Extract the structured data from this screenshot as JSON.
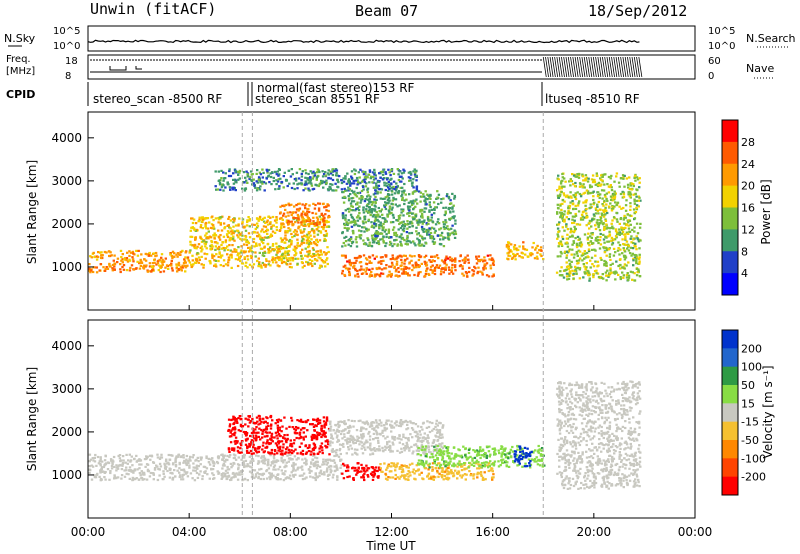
{
  "header": {
    "station": "Unwin (fitACF)",
    "beam": "Beam 07",
    "date": "18/Sep/2012"
  },
  "status": {
    "nsky_label": "N.Sky",
    "nsky_ticks": [
      "10^5",
      "10^0"
    ],
    "nsearch_label": "N.Search",
    "nsearch_ticks": [
      "10^5",
      "10^0"
    ],
    "freq_label": "Freq.",
    "freq_unit": "[MHz]",
    "freq_ticks": [
      "18",
      "8"
    ],
    "nave_label": "Nave",
    "nave_ticks": [
      "60",
      "0"
    ],
    "cpid_label": "CPID",
    "cpid_entries": [
      {
        "time": "00:00",
        "text": "stereo_scan -8500 RF"
      },
      {
        "time": "06:30",
        "text": "stereo_scan 8551 RF"
      },
      {
        "time": "06:20",
        "text": "normal(fast stereo)153 RF"
      },
      {
        "time": "18:00",
        "text": "ltuseq -8510 RF"
      }
    ]
  },
  "power_panel": {
    "ylabel": "Slant Range [km]",
    "cbar_label": "Power [dB]",
    "cbar_ticks": [
      "28",
      "24",
      "20",
      "16",
      "12",
      "8",
      "4"
    ],
    "cbar_colors": [
      "#ff0000",
      "#ff5a00",
      "#ff9a00",
      "#f2d200",
      "#7dbf3a",
      "#3f9a6a",
      "#2040c8",
      "#0000ff"
    ]
  },
  "velocity_panel": {
    "ylabel": "Slant Range [km]",
    "cbar_label": "Velocity [m s⁻¹]",
    "cbar_ticks": [
      "200",
      "100",
      "50",
      "15",
      "-15",
      "-50",
      "-100",
      "-200"
    ],
    "cbar_colors": [
      "#0033cc",
      "#2266cc",
      "#2e9a44",
      "#88dd44",
      "#c8c8c0",
      "#f5c030",
      "#ff8800",
      "#ff4400",
      "#ff0000"
    ]
  },
  "xaxis": {
    "label": "Time UT",
    "ticks": [
      "00:00",
      "04:00",
      "08:00",
      "12:00",
      "16:00",
      "20:00",
      "00:00"
    ]
  },
  "chart_data": [
    {
      "type": "heatmap",
      "panel": "power",
      "xlabel": "Time UT",
      "ylabel": "Slant Range [km]",
      "xlim_hours": [
        0,
        24
      ],
      "ylim": [
        0,
        4600
      ],
      "color_range_db": [
        0,
        30
      ],
      "scatter_bands": [
        {
          "t_start": 0.0,
          "t_end": 4.0,
          "range_low": 900,
          "range_high": 1400,
          "value_db": 22
        },
        {
          "t_start": 4.0,
          "t_end": 9.5,
          "range_low": 1000,
          "range_high": 2200,
          "value_db": 18
        },
        {
          "t_start": 7.5,
          "t_end": 9.5,
          "range_low": 2000,
          "range_high": 2500,
          "value_db": 24
        },
        {
          "t_start": 10.0,
          "t_end": 16.0,
          "range_low": 800,
          "range_high": 1300,
          "value_db": 24
        },
        {
          "t_start": 10.0,
          "t_end": 14.5,
          "range_low": 1500,
          "range_high": 2800,
          "value_db": 10
        },
        {
          "t_start": 5.0,
          "t_end": 13.0,
          "range_low": 2800,
          "range_high": 3300,
          "value_db": 8
        },
        {
          "t_start": 16.5,
          "t_end": 18.0,
          "range_low": 1200,
          "range_high": 1600,
          "value_db": 20
        },
        {
          "t_start": 18.5,
          "t_end": 21.8,
          "range_low": 700,
          "range_high": 3200,
          "value_db": 14
        }
      ]
    },
    {
      "type": "heatmap",
      "panel": "velocity",
      "xlabel": "Time UT",
      "ylabel": "Slant Range [km]",
      "xlim_hours": [
        0,
        24
      ],
      "ylim": [
        0,
        4600
      ],
      "color_range_ms": [
        -200,
        200
      ],
      "scatter_bands": [
        {
          "t_start": 0.0,
          "t_end": 10.0,
          "range_low": 900,
          "range_high": 1500,
          "value_ms": 0
        },
        {
          "t_start": 5.5,
          "t_end": 9.5,
          "range_low": 1500,
          "range_high": 2400,
          "value_ms": -200
        },
        {
          "t_start": 9.5,
          "t_end": 14.0,
          "range_low": 1500,
          "range_high": 2300,
          "value_ms": 0
        },
        {
          "t_start": 10.0,
          "t_end": 11.5,
          "range_low": 900,
          "range_high": 1300,
          "value_ms": -200
        },
        {
          "t_start": 11.5,
          "t_end": 16.0,
          "range_low": 900,
          "range_high": 1300,
          "value_ms": -60
        },
        {
          "t_start": 13.0,
          "t_end": 18.0,
          "range_low": 1200,
          "range_high": 1700,
          "value_ms": 60
        },
        {
          "t_start": 16.8,
          "t_end": 17.5,
          "range_low": 1200,
          "range_high": 1700,
          "value_ms": 200
        },
        {
          "t_start": 18.5,
          "t_end": 21.8,
          "range_low": 700,
          "range_high": 3200,
          "value_ms": 0
        }
      ]
    }
  ]
}
